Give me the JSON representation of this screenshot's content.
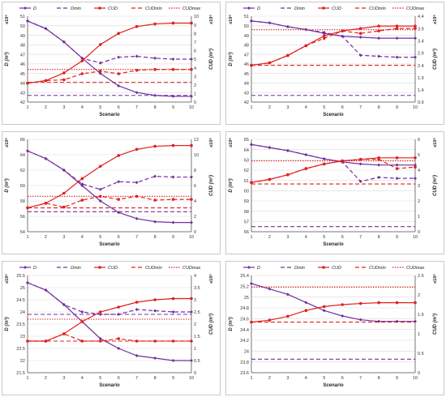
{
  "figure": {
    "legend_labels": {
      "D": "D",
      "Dmin": "Dmin",
      "CUD": "CUD",
      "CUDmin": "CUDmin",
      "CUDmax": "CUDmax"
    },
    "colors": {
      "D": "#7030a0",
      "CUD": "#e02020",
      "axis": "#555555",
      "grid": "#d9d9d9",
      "frame": "#c8c8c8"
    }
  },
  "chart_data": [
    {
      "type": "line",
      "xlabel": "Scenario",
      "ylabel_left": "D (m³)",
      "ylabel_right": "CUD (m³)",
      "scale_left": "x10⁸",
      "scale_right": "x10⁸",
      "legend_items": [
        "D",
        "Dmin",
        "CUD",
        "CUDmin",
        "CUDmax"
      ],
      "legend": "top",
      "x": [
        1,
        2,
        3,
        4,
        5,
        6,
        7,
        8,
        9,
        10
      ],
      "ylim_left": [
        42,
        51
      ],
      "yticks_left": [
        42,
        43,
        44,
        45,
        46,
        47,
        48,
        49,
        50,
        51
      ],
      "ylim_right": [
        0,
        10
      ],
      "yticks_right": [
        0,
        1,
        2,
        3,
        4,
        5,
        6,
        7,
        8,
        9,
        10
      ],
      "series": [
        {
          "name": "D",
          "axis": "left",
          "style": "solid",
          "values": [
            50.5,
            49.7,
            48.3,
            46.6,
            45.0,
            43.7,
            43.0,
            42.7,
            42.6,
            42.6
          ]
        },
        {
          "name": "",
          "axis": "left",
          "style": "dashed",
          "values": [
            50.5,
            49.7,
            48.3,
            46.6,
            46.1,
            46.7,
            46.8,
            46.6,
            46.5,
            46.5
          ]
        },
        {
          "name": "Dmin",
          "axis": "left",
          "style": "dashed",
          "constant": 42.7
        },
        {
          "name": "CUD",
          "axis": "right",
          "style": "solid",
          "values": [
            2.2,
            2.5,
            3.4,
            4.8,
            6.7,
            8.0,
            8.8,
            9.1,
            9.2,
            9.2
          ]
        },
        {
          "name": "",
          "axis": "right",
          "style": "dashed",
          "values": [
            2.2,
            2.5,
            2.6,
            3.3,
            3.6,
            3.3,
            3.7,
            3.8,
            3.8,
            3.8
          ]
        },
        {
          "name": "CUDmin",
          "axis": "right",
          "style": "dashed",
          "constant": 2.3
        },
        {
          "name": "CUDmax",
          "axis": "right",
          "style": "dotted",
          "constant": 3.8
        }
      ]
    },
    {
      "type": "line",
      "xlabel": "Scenario",
      "ylabel_left": "D (m³)",
      "ylabel_right": "CUD (m³)",
      "scale_left": "x10⁸",
      "scale_right": "x10⁸",
      "legend_items": [
        "D",
        "Dmin",
        "CUD",
        "CUDmin",
        "CUDmax"
      ],
      "legend": "top",
      "x": [
        1,
        2,
        3,
        4,
        5,
        6,
        7,
        8,
        9,
        10
      ],
      "ylim_left": [
        42,
        51
      ],
      "yticks_left": [
        42,
        43,
        44,
        45,
        46,
        47,
        48,
        49,
        50,
        51
      ],
      "ylim_right": [
        0.9,
        4.4
      ],
      "yticks_right": [
        0.9,
        1.4,
        1.9,
        2.4,
        2.9,
        3.4,
        3.9,
        4.4
      ],
      "series": [
        {
          "name": "D",
          "axis": "left",
          "style": "solid",
          "values": [
            50.5,
            50.3,
            49.9,
            49.6,
            49.2,
            48.9,
            48.8,
            48.7,
            48.7,
            48.7
          ]
        },
        {
          "name": "",
          "axis": "left",
          "style": "dashed",
          "values": [
            50.5,
            50.3,
            49.9,
            49.6,
            49.3,
            48.9,
            46.9,
            46.8,
            46.7,
            46.7
          ]
        },
        {
          "name": "Dmin",
          "axis": "left",
          "style": "dashed",
          "constant": 42.7
        },
        {
          "name": "CUD",
          "axis": "right",
          "style": "solid",
          "values": [
            2.4,
            2.5,
            2.8,
            3.2,
            3.6,
            3.8,
            3.9,
            4.0,
            4.0,
            4.0
          ]
        },
        {
          "name": "",
          "axis": "right",
          "style": "dashed",
          "values": [
            2.4,
            2.5,
            2.8,
            3.2,
            3.5,
            3.8,
            3.7,
            3.8,
            3.9,
            3.9
          ]
        },
        {
          "name": "CUDmin",
          "axis": "right",
          "style": "dashed",
          "constant": 2.4
        },
        {
          "name": "CUDmax",
          "axis": "right",
          "style": "dotted",
          "constant": 3.85
        }
      ]
    },
    {
      "type": "line",
      "xlabel": "Scenario",
      "ylabel_left": "D (m³)",
      "ylabel_right": "CUD (m³)",
      "scale_left": "x10⁸",
      "scale_right": "x10⁸",
      "legend_items": [],
      "legend": "none",
      "x": [
        1,
        2,
        3,
        4,
        5,
        6,
        7,
        8,
        9,
        10
      ],
      "ylim_left": [
        54,
        66
      ],
      "yticks_left": [
        54,
        56,
        58,
        60,
        62,
        64,
        66
      ],
      "ylim_right": [
        0,
        12
      ],
      "yticks_right": [
        0,
        2,
        4,
        6,
        8,
        10,
        12
      ],
      "series": [
        {
          "name": "D",
          "axis": "left",
          "style": "solid",
          "values": [
            64.5,
            63.5,
            62.0,
            60.0,
            58.0,
            56.5,
            55.7,
            55.3,
            55.2,
            55.2
          ]
        },
        {
          "name": "",
          "axis": "left",
          "style": "dashed",
          "values": [
            64.5,
            63.5,
            62.0,
            60.2,
            59.5,
            60.5,
            60.4,
            61.2,
            61.1,
            61.1
          ]
        },
        {
          "name": "Dmin",
          "axis": "left",
          "style": "dashed",
          "constant": 56.6
        },
        {
          "name": "CUD",
          "axis": "right",
          "style": "solid",
          "values": [
            3.1,
            3.7,
            5.0,
            6.9,
            8.5,
            9.9,
            10.7,
            11.1,
            11.2,
            11.2
          ]
        },
        {
          "name": "",
          "axis": "right",
          "style": "dashed",
          "values": [
            3.1,
            3.7,
            3.2,
            4.1,
            4.6,
            4.2,
            4.6,
            4.1,
            4.2,
            4.2
          ]
        },
        {
          "name": "CUDmin",
          "axis": "right",
          "style": "dashed",
          "constant": 3.1
        },
        {
          "name": "CUDmax",
          "axis": "right",
          "style": "dotted",
          "constant": 4.6
        }
      ]
    },
    {
      "type": "line",
      "xlabel": "Scenario",
      "ylabel_left": "D (m³)",
      "ylabel_right": "CUD (m³)",
      "scale_left": "x10⁸",
      "scale_right": "x10⁸",
      "legend_items": [],
      "legend": "none",
      "x": [
        1,
        2,
        3,
        4,
        5,
        6,
        7,
        8,
        9,
        10
      ],
      "ylim_left": [
        56,
        65
      ],
      "yticks_left": [
        56,
        57,
        58,
        59,
        60,
        61,
        62,
        63,
        64,
        65
      ],
      "ylim_right": [
        0,
        6
      ],
      "yticks_right": [
        0,
        1,
        2,
        3,
        4,
        5,
        6
      ],
      "series": [
        {
          "name": "D",
          "axis": "left",
          "style": "solid",
          "values": [
            64.5,
            64.2,
            63.9,
            63.5,
            63.1,
            62.8,
            62.6,
            62.5,
            62.5,
            62.5
          ]
        },
        {
          "name": "",
          "axis": "left",
          "style": "dashed",
          "values": [
            64.5,
            64.2,
            63.9,
            63.5,
            63.1,
            62.8,
            60.9,
            61.3,
            61.2,
            61.2
          ]
        },
        {
          "name": "Dmin",
          "axis": "left",
          "style": "dashed",
          "constant": 56.5
        },
        {
          "name": "CUD",
          "axis": "right",
          "style": "solid",
          "values": [
            3.2,
            3.4,
            3.7,
            4.1,
            4.4,
            4.6,
            4.7,
            4.8,
            4.8,
            4.8
          ]
        },
        {
          "name": "",
          "axis": "right",
          "style": "dashed",
          "values": [
            3.2,
            3.4,
            3.7,
            4.1,
            4.4,
            4.6,
            4.7,
            4.7,
            4.1,
            4.2
          ]
        },
        {
          "name": "CUDmin",
          "axis": "right",
          "style": "dashed",
          "constant": 3.1
        },
        {
          "name": "CUDmax",
          "axis": "right",
          "style": "dotted",
          "constant": 4.6
        }
      ]
    },
    {
      "type": "line",
      "xlabel": "Scenario",
      "ylabel_left": "D (m³)",
      "ylabel_right": "CUD (m³)",
      "scale_left": "x10⁸",
      "scale_right": "x10⁸",
      "legend_items": [
        "D",
        "Dmin",
        "CUD",
        "CUDmin",
        "CUDmax"
      ],
      "legend": "top",
      "x": [
        1,
        2,
        3,
        4,
        5,
        6,
        7,
        8,
        9,
        10
      ],
      "ylim_left": [
        21.5,
        25.5
      ],
      "yticks_left": [
        21.5,
        22,
        22.5,
        23,
        23.5,
        24,
        24.5,
        25,
        25.5
      ],
      "ylim_right": [
        0,
        4
      ],
      "yticks_right": [
        0,
        0.5,
        1,
        1.5,
        2,
        2.5,
        3,
        3.5,
        4
      ],
      "series": [
        {
          "name": "D",
          "axis": "left",
          "style": "solid",
          "values": [
            25.2,
            24.9,
            24.3,
            23.6,
            22.9,
            22.5,
            22.2,
            22.1,
            22.0,
            22.0
          ]
        },
        {
          "name": "",
          "axis": "left",
          "style": "dashed",
          "values": [
            25.2,
            24.9,
            24.3,
            24.0,
            23.9,
            23.9,
            24.1,
            24.05,
            24.0,
            24.0
          ]
        },
        {
          "name": "Dmin",
          "axis": "left",
          "style": "dashed",
          "constant": 23.9
        },
        {
          "name": "CUD",
          "axis": "right",
          "style": "solid",
          "values": [
            1.3,
            1.3,
            1.6,
            2.1,
            2.5,
            2.7,
            2.9,
            3.0,
            3.05,
            3.05
          ]
        },
        {
          "name": "",
          "axis": "right",
          "style": "dashed",
          "values": [
            1.3,
            1.3,
            1.6,
            1.3,
            1.3,
            1.4,
            1.3,
            1.3,
            1.3,
            1.3
          ]
        },
        {
          "name": "CUDmin",
          "axis": "right",
          "style": "dashed",
          "constant": 1.3
        },
        {
          "name": "CUDmax",
          "axis": "right",
          "style": "dotted",
          "constant": 2.2
        }
      ]
    },
    {
      "type": "line",
      "xlabel": "Scenario",
      "ylabel_left": "D (m³)",
      "ylabel_right": "CUD (m³)",
      "scale_left": "",
      "scale_right": "x10⁸",
      "legend_items": [
        "D",
        "Dmin",
        "CUD",
        "CUDmin",
        "CUDmax"
      ],
      "legend": "top",
      "x": [
        1,
        2,
        3,
        4,
        5,
        6,
        7,
        8,
        9,
        10
      ],
      "ylim_left": [
        23.6,
        25.4
      ],
      "yticks_left": [
        23.6,
        23.8,
        24,
        24.2,
        24.4,
        24.6,
        24.8,
        25,
        25.2,
        25.4
      ],
      "ylim_right": [
        0,
        2.5
      ],
      "yticks_right": [
        0,
        0.5,
        1,
        1.5,
        2,
        2.5
      ],
      "series": [
        {
          "name": "D",
          "axis": "left",
          "style": "solid",
          "values": [
            25.25,
            25.15,
            25.05,
            24.9,
            24.75,
            24.65,
            24.58,
            24.55,
            24.55,
            24.55
          ]
        },
        {
          "name": "Dmin",
          "axis": "left",
          "style": "dashed",
          "constant": 23.85
        },
        {
          "name": "CUD",
          "axis": "right",
          "style": "solid",
          "values": [
            1.3,
            1.35,
            1.45,
            1.6,
            1.7,
            1.75,
            1.78,
            1.8,
            1.8,
            1.8
          ]
        },
        {
          "name": "CUDmin",
          "axis": "right",
          "style": "dashed",
          "constant": 1.3
        },
        {
          "name": "CUDmax",
          "axis": "right",
          "style": "dotted",
          "constant": 2.2
        }
      ]
    }
  ]
}
